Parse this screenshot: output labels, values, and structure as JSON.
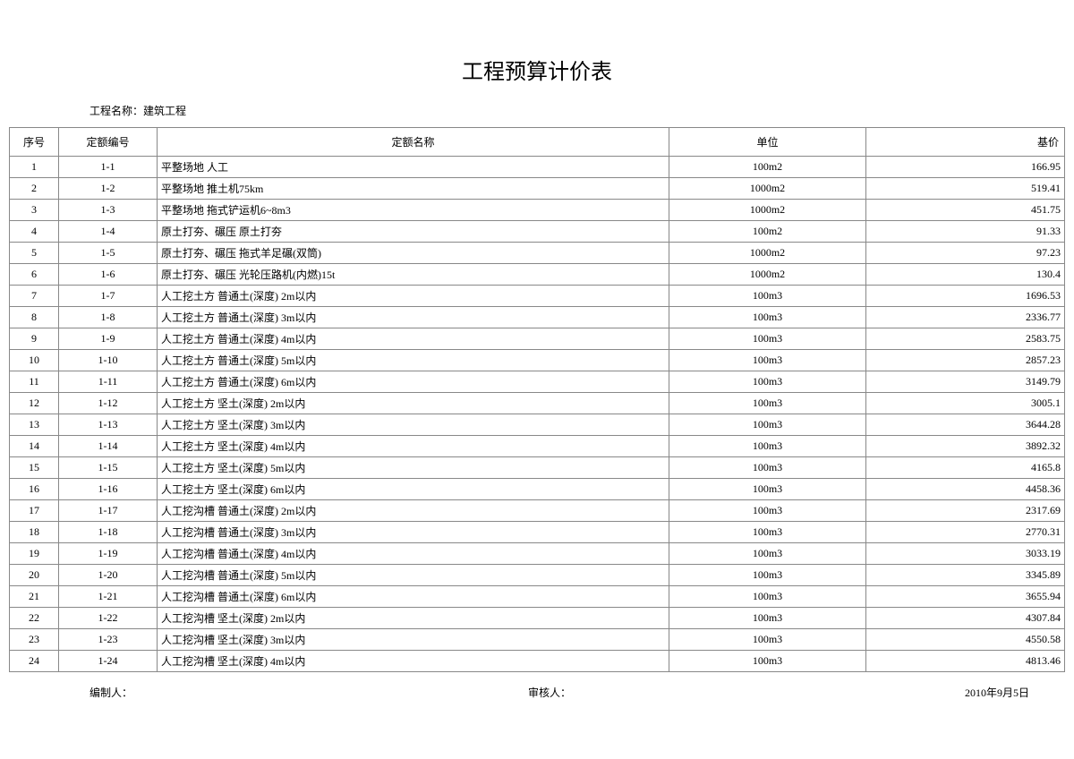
{
  "title": "工程预算计价表",
  "project_label": "工程名称：建筑工程",
  "columns": {
    "seq": "序号",
    "code": "定额编号",
    "name": "定额名称",
    "unit": "单位",
    "price": "基价"
  },
  "rows": [
    {
      "seq": "1",
      "code": "1-1",
      "name": "平整场地 人工",
      "unit": "100m2",
      "price": "166.95"
    },
    {
      "seq": "2",
      "code": "1-2",
      "name": "平整场地 推土机75km",
      "unit": "1000m2",
      "price": "519.41"
    },
    {
      "seq": "3",
      "code": "1-3",
      "name": "平整场地 拖式铲运机6~8m3",
      "unit": "1000m2",
      "price": "451.75"
    },
    {
      "seq": "4",
      "code": "1-4",
      "name": "原土打夯、碾压 原土打夯",
      "unit": "100m2",
      "price": "91.33"
    },
    {
      "seq": "5",
      "code": "1-5",
      "name": "原土打夯、碾压 拖式羊足碾(双筒)",
      "unit": "1000m2",
      "price": "97.23"
    },
    {
      "seq": "6",
      "code": "1-6",
      "name": "原土打夯、碾压 光轮压路机(内燃)15t",
      "unit": "1000m2",
      "price": "130.4"
    },
    {
      "seq": "7",
      "code": "1-7",
      "name": "人工挖土方 普通土(深度) 2m以内",
      "unit": "100m3",
      "price": "1696.53"
    },
    {
      "seq": "8",
      "code": "1-8",
      "name": "人工挖土方 普通土(深度) 3m以内",
      "unit": "100m3",
      "price": "2336.77"
    },
    {
      "seq": "9",
      "code": "1-9",
      "name": "人工挖土方 普通土(深度) 4m以内",
      "unit": "100m3",
      "price": "2583.75"
    },
    {
      "seq": "10",
      "code": "1-10",
      "name": "人工挖土方 普通土(深度) 5m以内",
      "unit": "100m3",
      "price": "2857.23"
    },
    {
      "seq": "11",
      "code": "1-11",
      "name": "人工挖土方 普通土(深度) 6m以内",
      "unit": "100m3",
      "price": "3149.79"
    },
    {
      "seq": "12",
      "code": "1-12",
      "name": "人工挖土方 坚土(深度) 2m以内",
      "unit": "100m3",
      "price": "3005.1"
    },
    {
      "seq": "13",
      "code": "1-13",
      "name": "人工挖土方 坚土(深度) 3m以内",
      "unit": "100m3",
      "price": "3644.28"
    },
    {
      "seq": "14",
      "code": "1-14",
      "name": "人工挖土方 坚土(深度) 4m以内",
      "unit": "100m3",
      "price": "3892.32"
    },
    {
      "seq": "15",
      "code": "1-15",
      "name": "人工挖土方 坚土(深度) 5m以内",
      "unit": "100m3",
      "price": "4165.8"
    },
    {
      "seq": "16",
      "code": "1-16",
      "name": "人工挖土方 坚土(深度) 6m以内",
      "unit": "100m3",
      "price": "4458.36"
    },
    {
      "seq": "17",
      "code": "1-17",
      "name": "人工挖沟槽 普通土(深度) 2m以内",
      "unit": "100m3",
      "price": "2317.69"
    },
    {
      "seq": "18",
      "code": "1-18",
      "name": "人工挖沟槽 普通土(深度) 3m以内",
      "unit": "100m3",
      "price": "2770.31"
    },
    {
      "seq": "19",
      "code": "1-19",
      "name": "人工挖沟槽 普通土(深度) 4m以内",
      "unit": "100m3",
      "price": "3033.19"
    },
    {
      "seq": "20",
      "code": "1-20",
      "name": "人工挖沟槽 普通土(深度) 5m以内",
      "unit": "100m3",
      "price": "3345.89"
    },
    {
      "seq": "21",
      "code": "1-21",
      "name": "人工挖沟槽 普通土(深度) 6m以内",
      "unit": "100m3",
      "price": "3655.94"
    },
    {
      "seq": "22",
      "code": "1-22",
      "name": "人工挖沟槽 坚土(深度) 2m以内",
      "unit": "100m3",
      "price": "4307.84"
    },
    {
      "seq": "23",
      "code": "1-23",
      "name": "人工挖沟槽 坚土(深度) 3m以内",
      "unit": "100m3",
      "price": "4550.58"
    },
    {
      "seq": "24",
      "code": "1-24",
      "name": "人工挖沟槽 坚土(深度) 4m以内",
      "unit": "100m3",
      "price": "4813.46"
    }
  ],
  "footer": {
    "prepared_by": "编制人：",
    "reviewed_by": "审核人：",
    "date": "2010年9月5日"
  },
  "styles": {
    "title_fontsize": 24,
    "body_fontsize": 12,
    "border_color": "#888888",
    "background_color": "#ffffff",
    "text_color": "#000000",
    "col_widths": {
      "seq": 55,
      "code": 110,
      "name": 572,
      "unit": 220,
      "price": 222
    },
    "col_align": {
      "seq": "center",
      "code": "center",
      "name": "left",
      "unit": "center",
      "price": "right"
    }
  }
}
